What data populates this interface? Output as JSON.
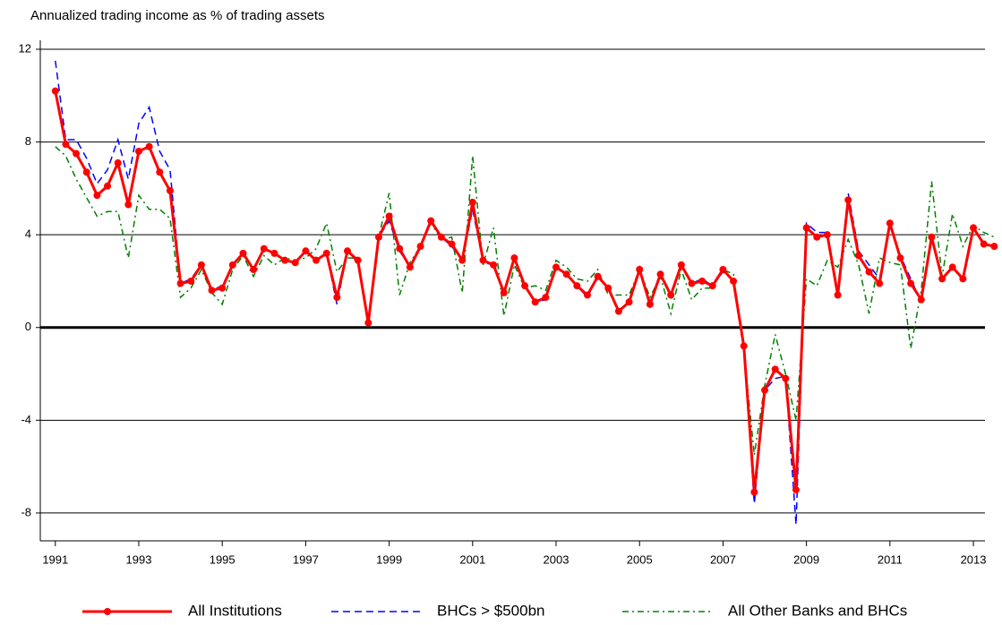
{
  "chart_data": {
    "type": "line",
    "title": "Annualized trading income as % of trading assets",
    "x": [
      1991,
      1991.25,
      1991.5,
      1991.75,
      1992,
      1992.25,
      1992.5,
      1992.75,
      1993,
      1993.25,
      1993.5,
      1993.75,
      1994,
      1994.25,
      1994.5,
      1994.75,
      1995,
      1995.25,
      1995.5,
      1995.75,
      1996,
      1996.25,
      1996.5,
      1996.75,
      1997,
      1997.25,
      1997.5,
      1997.75,
      1998,
      1998.25,
      1998.5,
      1998.75,
      1999,
      1999.25,
      1999.5,
      1999.75,
      2000,
      2000.25,
      2000.5,
      2000.75,
      2001,
      2001.25,
      2001.5,
      2001.75,
      2002,
      2002.25,
      2002.5,
      2002.75,
      2003,
      2003.25,
      2003.5,
      2003.75,
      2004,
      2004.25,
      2004.5,
      2004.75,
      2005,
      2005.25,
      2005.5,
      2005.75,
      2006,
      2006.25,
      2006.5,
      2006.75,
      2007,
      2007.25,
      2007.5,
      2007.75,
      2008,
      2008.25,
      2008.5,
      2008.75,
      2009,
      2009.25,
      2009.5,
      2009.75,
      2010,
      2010.25,
      2010.5,
      2010.75,
      2011,
      2011.25,
      2011.5,
      2011.75,
      2012,
      2012.25,
      2012.5,
      2012.75,
      2013,
      2013.25,
      2013.5
    ],
    "series": [
      {
        "name": "All Institutions",
        "color": "#ff0000",
        "style": "solid",
        "markers": true,
        "values": [
          10.2,
          7.9,
          7.5,
          6.7,
          5.7,
          6.1,
          7.1,
          5.3,
          7.6,
          7.8,
          6.7,
          5.9,
          1.9,
          2.0,
          2.7,
          1.6,
          1.7,
          2.7,
          3.2,
          2.5,
          3.4,
          3.2,
          2.9,
          2.8,
          3.3,
          2.9,
          3.2,
          1.3,
          3.3,
          2.9,
          0.2,
          3.9,
          4.8,
          3.4,
          2.6,
          3.5,
          4.6,
          3.9,
          3.6,
          2.9,
          5.4,
          2.9,
          2.7,
          1.5,
          3.0,
          1.8,
          1.1,
          1.3,
          2.6,
          2.3,
          1.8,
          1.4,
          2.2,
          1.7,
          0.7,
          1.1,
          2.5,
          1.0,
          2.3,
          1.4,
          2.7,
          1.9,
          2.0,
          1.8,
          2.5,
          2.0,
          -0.8,
          -7.1,
          -2.7,
          -1.8,
          -2.2,
          -7.0,
          4.3,
          3.9,
          4.0,
          1.4,
          5.5,
          3.1,
          2.4,
          1.9,
          4.5,
          3.0,
          1.9,
          1.2,
          3.9,
          2.1,
          2.6,
          2.1,
          4.3,
          3.6,
          3.5
        ]
      },
      {
        "name": "BHCs > $500bn",
        "color": "#0000ff",
        "style": "dashed",
        "markers": false,
        "values": [
          11.5,
          8.1,
          8.1,
          7.3,
          6.2,
          6.8,
          8.1,
          6.4,
          8.8,
          9.5,
          7.6,
          6.8,
          1.9,
          2.1,
          2.7,
          1.6,
          1.8,
          2.7,
          3.2,
          2.5,
          3.4,
          3.2,
          2.9,
          2.8,
          3.3,
          2.9,
          3.2,
          1.0,
          3.3,
          2.8,
          0.1,
          3.9,
          4.6,
          3.3,
          2.6,
          3.5,
          4.6,
          3.9,
          3.5,
          2.9,
          5.1,
          2.8,
          2.7,
          1.5,
          3.0,
          1.8,
          1.1,
          1.2,
          2.6,
          2.3,
          1.8,
          1.3,
          2.2,
          1.7,
          0.7,
          1.1,
          2.5,
          0.9,
          2.3,
          1.3,
          2.7,
          1.9,
          2.1,
          1.8,
          2.4,
          2.0,
          -0.9,
          -7.6,
          -2.7,
          -2.2,
          -2.1,
          -8.5,
          4.5,
          4.1,
          4.1,
          1.4,
          5.8,
          3.3,
          2.7,
          2.1,
          4.4,
          3.1,
          2.1,
          1.1,
          3.9,
          2.1,
          2.6,
          2.1,
          4.3,
          3.6,
          3.5
        ]
      },
      {
        "name": "All Other Banks and BHCs",
        "color": "#008000",
        "style": "dashdot",
        "markers": false,
        "values": [
          7.8,
          7.4,
          6.4,
          5.6,
          4.8,
          5.0,
          5.0,
          3.0,
          5.7,
          5.1,
          5.1,
          4.7,
          1.3,
          1.7,
          2.5,
          1.5,
          1.0,
          2.5,
          3.1,
          2.2,
          3.1,
          2.7,
          3.0,
          2.9,
          3.0,
          3.4,
          4.5,
          2.4,
          3.0,
          3.0,
          0.3,
          3.9,
          5.8,
          1.4,
          2.8,
          3.5,
          4.5,
          3.8,
          3.9,
          1.5,
          7.4,
          2.7,
          4.3,
          0.5,
          2.7,
          1.7,
          1.8,
          1.6,
          2.9,
          2.6,
          2.1,
          2.0,
          2.5,
          1.4,
          1.4,
          1.4,
          2.5,
          1.3,
          2.2,
          0.6,
          2.5,
          1.2,
          1.7,
          1.7,
          2.5,
          2.3,
          -1.0,
          -5.5,
          -2.5,
          -0.3,
          -2.0,
          -4.0,
          2.1,
          1.8,
          2.9,
          2.6,
          3.8,
          2.7,
          0.6,
          3.0,
          2.8,
          2.7,
          -0.9,
          1.6,
          6.3,
          2.2,
          4.9,
          3.5,
          4.4,
          4.1,
          3.9
        ]
      }
    ],
    "xlim": [
      1990.64,
      2013.6
    ],
    "xticks": [
      1991,
      1993,
      1995,
      1997,
      1999,
      2001,
      2003,
      2005,
      2007,
      2009,
      2011,
      2013
    ],
    "ylim": [
      -9.2,
      12
    ],
    "yticks": [
      12,
      8,
      4,
      0,
      -4,
      -8
    ],
    "grid": true,
    "legend": "bottom"
  }
}
